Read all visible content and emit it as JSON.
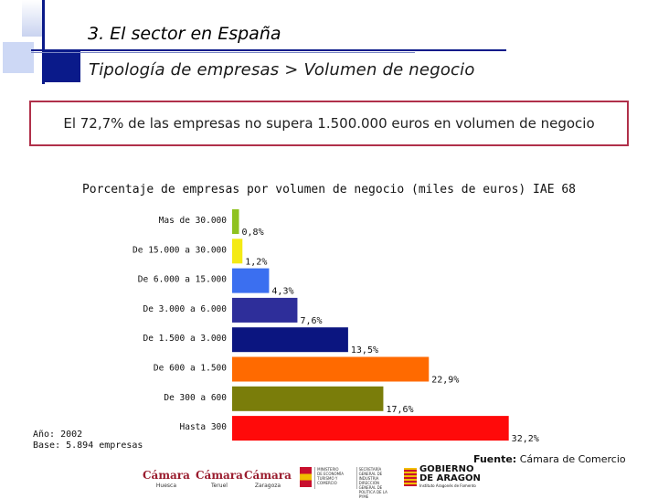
{
  "header": {
    "section_title": "3.  El sector en España",
    "subtitle": "Tipología de empresas > Volumen de negocio"
  },
  "highlight": {
    "text": "El 72,7% de las empresas no supera 1.500.000 euros en volumen de negocio"
  },
  "chart_data": {
    "type": "bar",
    "orientation": "horizontal",
    "title": "Porcentaje de empresas por volumen de negocio (miles de euros) IAE 68",
    "categories": [
      "Mas de 30.000",
      "De 15.000 a 30.000",
      "De 6.000 a 15.000",
      "De 3.000 a 6.000",
      "De 1.500 a 3.000",
      "De 600 a 1.500",
      "De 300 a 600",
      "Hasta 300"
    ],
    "values": [
      0.8,
      1.2,
      4.3,
      7.6,
      13.5,
      22.9,
      17.6,
      32.2
    ],
    "value_labels": [
      "0,8%",
      "1,2%",
      "4,3%",
      "7,6%",
      "13,5%",
      "22,9%",
      "17,6%",
      "32,2%"
    ],
    "colors": [
      "#8fc21f",
      "#f4ea14",
      "#3b6ff0",
      "#2e2e9a",
      "#0b1580",
      "#ff6a00",
      "#7a7d0a",
      "#ff0a0a"
    ],
    "xlabel": "",
    "ylabel": "",
    "xlim": [
      0,
      32.2
    ],
    "grid": false,
    "legend": "none"
  },
  "footnote": {
    "year": "Año: 2002",
    "base": "Base: 5.894 empresas"
  },
  "source": {
    "label": "Fuente:",
    "value": "Cámara de Comercio"
  },
  "logos": {
    "camara": "Cámara",
    "cities": [
      "Huesca",
      "Teruel",
      "Zaragoza"
    ],
    "ministerio_lines": [
      "MINISTERIO",
      "DE ECONOMÍA",
      "TURISMO Y",
      "COMERCIO"
    ],
    "secretaria_lines": [
      "SECRETARÍA GENERAL DE",
      "INDUSTRIA",
      "DIRECCIÓN GENERAL DE",
      "POLÍTICA DE LA PYME"
    ],
    "aragon_line1": "GOBIERNO",
    "aragon_line2": "DE ARAGON",
    "aragon_sub": "Instituto Aragonés de Fomento"
  }
}
